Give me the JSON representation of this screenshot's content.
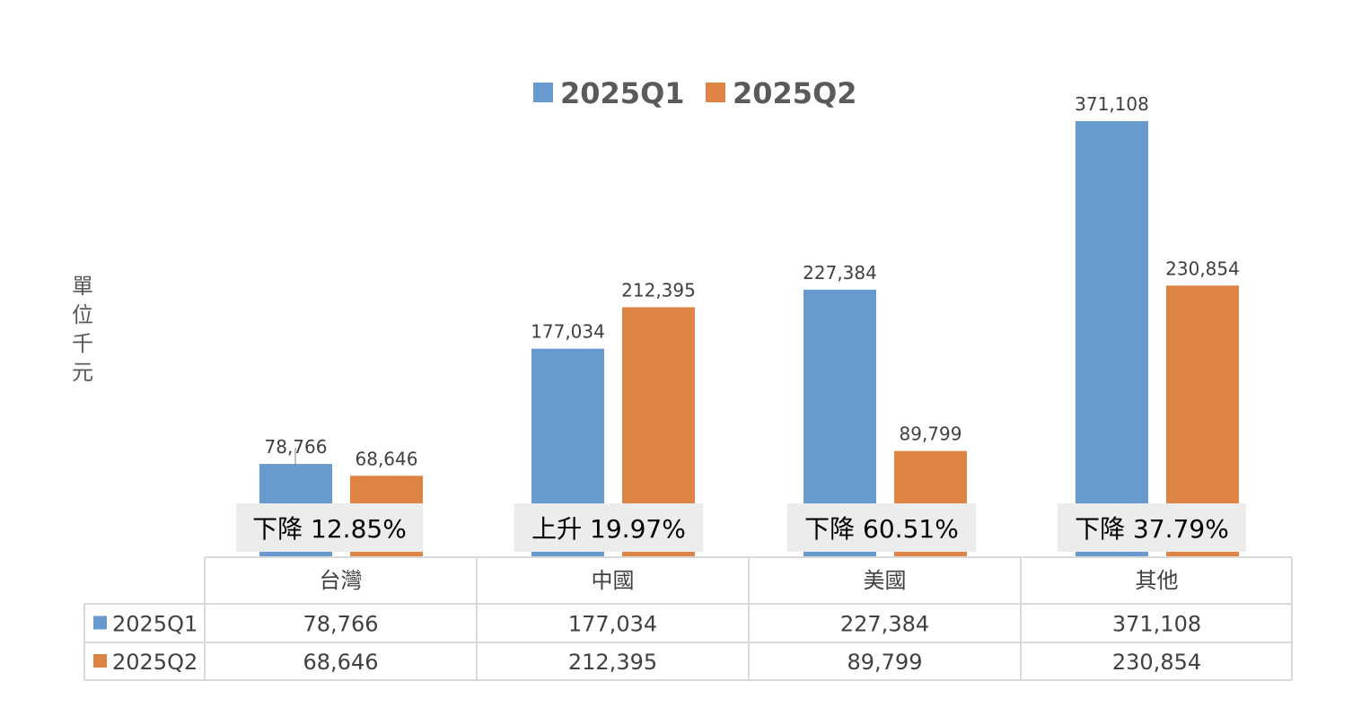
{
  "colors": {
    "q1": "#6899cf",
    "q2": "#dd8343",
    "change_box": "#ececec",
    "grid": "#d9d9d9"
  },
  "chart_data": {
    "type": "bar",
    "categories": [
      "台灣",
      "中國",
      "美國",
      "其他"
    ],
    "series": [
      {
        "name": "2025Q1",
        "values": [
          78766,
          177034,
          227384,
          371108
        ],
        "labels": [
          "78,766",
          "177,034",
          "227,384",
          "371,108"
        ]
      },
      {
        "name": "2025Q2",
        "values": [
          68646,
          212395,
          89799,
          230854
        ],
        "labels": [
          "68,646",
          "212,395",
          "89,799",
          "230,854"
        ]
      }
    ],
    "ylabel": "單位千元",
    "ylim": [
      0,
      400000
    ],
    "legend": "top-center",
    "grid": false,
    "annotations": [
      "下降 12.85%",
      "上升 19.97%",
      "下降 60.51%",
      "下降 37.79%"
    ],
    "table": {
      "rows": [
        {
          "name": "2025Q1",
          "cells": [
            "78,766",
            "177,034",
            "227,384",
            "371,108"
          ]
        },
        {
          "name": "2025Q2",
          "cells": [
            "68,646",
            "212,395",
            "89,799",
            "230,854"
          ]
        }
      ]
    }
  }
}
